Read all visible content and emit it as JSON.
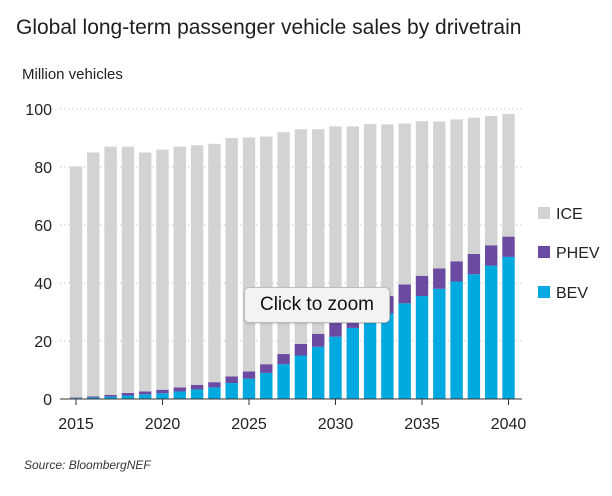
{
  "chart_data": {
    "type": "bar",
    "stacked": true,
    "title": "Global long-term passenger vehicle sales by drivetrain",
    "ylabel": "Million vehicles",
    "xlabel": "",
    "ylim": [
      0,
      100
    ],
    "yticks": [
      0,
      20,
      40,
      60,
      80,
      100
    ],
    "xtick_labels": [
      "2015",
      "2020",
      "2025",
      "2030",
      "2035",
      "2040"
    ],
    "categories": [
      2015,
      2016,
      2017,
      2018,
      2019,
      2020,
      2021,
      2022,
      2023,
      2024,
      2025,
      2026,
      2027,
      2028,
      2029,
      2030,
      2031,
      2032,
      2033,
      2034,
      2035,
      2036,
      2037,
      2038,
      2039,
      2040
    ],
    "series": [
      {
        "name": "BEV",
        "color": "#00A9E0",
        "values": [
          0.3,
          0.5,
          0.8,
          1.2,
          1.6,
          2.0,
          2.6,
          3.3,
          4.0,
          5.5,
          7.0,
          9.0,
          12.0,
          15.0,
          18.0,
          21.5,
          24.5,
          27.0,
          29.5,
          33.0,
          35.5,
          38.0,
          40.5,
          43.0,
          46.0,
          49.0
        ]
      },
      {
        "name": "PHEV",
        "color": "#6B4BA1",
        "values": [
          0.2,
          0.4,
          0.6,
          0.9,
          1.0,
          1.2,
          1.4,
          1.6,
          1.8,
          2.3,
          2.5,
          3.0,
          3.5,
          4.0,
          4.5,
          5.0,
          5.5,
          5.5,
          6.0,
          6.5,
          7.0,
          7.0,
          7.0,
          7.0,
          7.0,
          7.0
        ]
      },
      {
        "name": "ICE",
        "color": "#D3D3D3",
        "values": [
          79.7,
          84.1,
          85.6,
          84.9,
          82.4,
          82.8,
          83.0,
          82.6,
          82.2,
          82.2,
          80.7,
          78.5,
          76.5,
          74.0,
          70.5,
          67.5,
          64.0,
          62.3,
          59.2,
          55.5,
          53.3,
          50.7,
          48.9,
          47.0,
          44.6,
          42.3
        ]
      }
    ],
    "legend": {
      "position": "right",
      "order": [
        "ICE",
        "PHEV",
        "BEV"
      ]
    },
    "grid": {
      "y": true,
      "style": "dotted"
    },
    "source": "Source: BloombergNEF"
  },
  "overlay": {
    "zoom_label": "Click to zoom"
  }
}
